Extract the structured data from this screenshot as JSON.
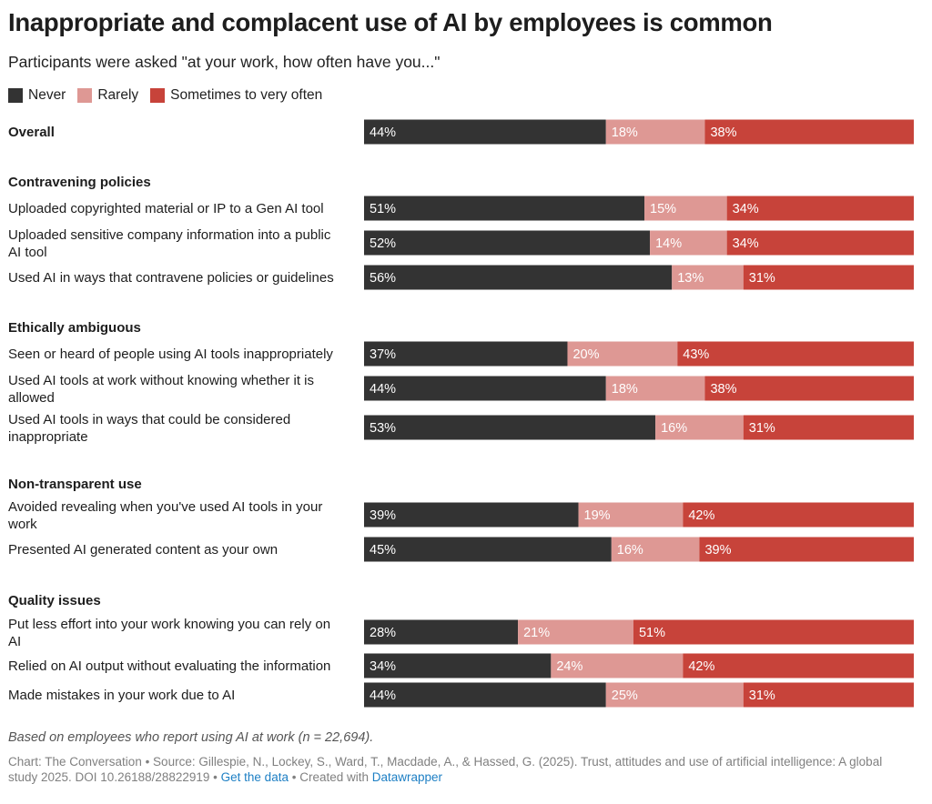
{
  "title": "Inappropriate and complacent use of AI by employees is common",
  "subtitle": "Participants were asked \"at your work, how often have you...\"",
  "colors": {
    "never": "#333333",
    "rarely": "#de9894",
    "often": "#c7433a"
  },
  "legend": [
    {
      "label": "Never",
      "color": "#333333"
    },
    {
      "label": "Rarely",
      "color": "#de9894"
    },
    {
      "label": "Sometimes to very often",
      "color": "#c7433a"
    }
  ],
  "chart_data": {
    "type": "bar",
    "orientation": "horizontal",
    "stacked": true,
    "series_names": [
      "Never",
      "Rarely",
      "Sometimes to very often"
    ],
    "rows": [
      {
        "kind": "item",
        "bold": true,
        "label": [
          "Overall"
        ],
        "values": [
          44,
          18,
          38
        ],
        "labels": [
          "44%",
          "18%",
          "38%"
        ]
      },
      {
        "kind": "group",
        "label": "Contravening policies"
      },
      {
        "kind": "item",
        "label": [
          "Uploaded copyrighted material or IP to a Gen AI tool"
        ],
        "values": [
          51,
          15,
          34
        ],
        "labels": [
          "51%",
          "15%",
          "34%"
        ]
      },
      {
        "kind": "item",
        "label": [
          "Uploaded sensitive company information into a public",
          "AI tool"
        ],
        "values": [
          52,
          14,
          34
        ],
        "labels": [
          "52%",
          "14%",
          "34%"
        ]
      },
      {
        "kind": "item",
        "label": [
          "Used AI in ways that contravene policies or guidelines"
        ],
        "values": [
          56,
          13,
          31
        ],
        "labels": [
          "56%",
          "13%",
          "31%"
        ]
      },
      {
        "kind": "group",
        "label": "Ethically ambiguous"
      },
      {
        "kind": "item",
        "label": [
          "Seen or heard of people using AI tools inappropriately"
        ],
        "values": [
          37,
          20,
          43
        ],
        "labels": [
          "37%",
          "20%",
          "43%"
        ]
      },
      {
        "kind": "item",
        "label": [
          "Used AI tools at work without knowing whether it is",
          "allowed"
        ],
        "values": [
          44,
          18,
          38
        ],
        "labels": [
          "44%",
          "18%",
          "38%"
        ]
      },
      {
        "kind": "item",
        "label": [
          "Used AI tools in ways that could be considered",
          "inappropriate"
        ],
        "values": [
          53,
          16,
          31
        ],
        "labels": [
          "53%",
          "16%",
          "31%"
        ]
      },
      {
        "kind": "group",
        "label": "Non-transparent use"
      },
      {
        "kind": "item",
        "label": [
          "Avoided revealing when you've used AI tools in your",
          "work"
        ],
        "values": [
          39,
          19,
          42
        ],
        "labels": [
          "39%",
          "19%",
          "42%"
        ]
      },
      {
        "kind": "item",
        "label": [
          "Presented AI generated content as your own"
        ],
        "values": [
          45,
          16,
          39
        ],
        "labels": [
          "45%",
          "16%",
          "39%"
        ]
      },
      {
        "kind": "group",
        "label": "Quality issues"
      },
      {
        "kind": "item",
        "label": [
          "Put less effort into your work knowing you can rely on",
          "AI"
        ],
        "values": [
          28,
          21,
          51
        ],
        "labels": [
          "28%",
          "21%",
          "51%"
        ]
      },
      {
        "kind": "item",
        "label": [
          "Relied on AI output without evaluating the information"
        ],
        "values": [
          34,
          24,
          42
        ],
        "labels": [
          "34%",
          "24%",
          "42%"
        ]
      },
      {
        "kind": "item",
        "label": [
          "Made mistakes in your work due to AI"
        ],
        "values": [
          44,
          25,
          31
        ],
        "labels": [
          "44%",
          "25%",
          "31%"
        ]
      }
    ]
  },
  "note": "Based on employees who report using AI at work (n = 22,694).",
  "footer": {
    "prefix": "Chart: The Conversation • Source: Gillespie, N., Lockey, S., Ward, T., Macdade, A., & Hassed, G. (2025). Trust, attitudes and use of artificial intelligence: A global study 2025. DOI 10.26188/28822919 • ",
    "get_data": "Get the data",
    "middle": " • Created with ",
    "datawrapper": "Datawrapper"
  }
}
